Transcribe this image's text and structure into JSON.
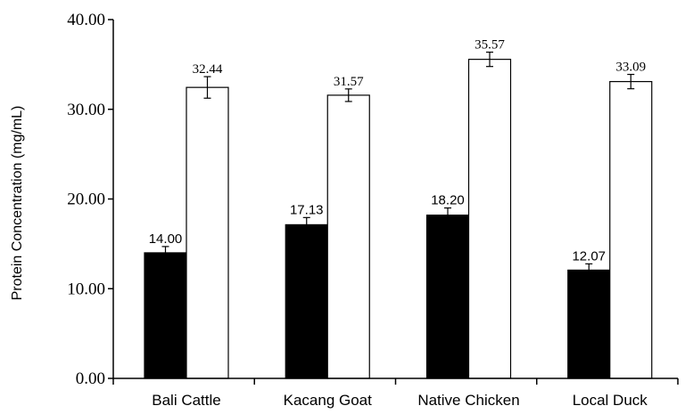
{
  "chart_data": {
    "type": "bar",
    "title": "",
    "xlabel": "",
    "ylabel": "Protein Concentration (mg/mL)",
    "ylim": [
      0,
      40
    ],
    "yticks": [
      "0.00",
      "10.00",
      "20.00",
      "30.00",
      "40.00"
    ],
    "categories": [
      "Bali Cattle",
      "Kacang Goat",
      "Native Chicken",
      "Local Duck"
    ],
    "series": [
      {
        "fill": "#000000",
        "values": [
          14.0,
          17.13,
          18.2,
          12.07
        ],
        "labels": [
          "14.00",
          "17.13",
          "18.20",
          "12.07"
        ],
        "errors": [
          0.7,
          0.8,
          0.8,
          0.7
        ]
      },
      {
        "fill": "#ffffff",
        "values": [
          32.44,
          31.57,
          35.57,
          33.09
        ],
        "labels": [
          "32.44",
          "31.57",
          "35.57",
          "33.09"
        ],
        "errors": [
          1.2,
          0.7,
          0.8,
          0.8
        ]
      }
    ],
    "grid": false,
    "legend": "none"
  }
}
